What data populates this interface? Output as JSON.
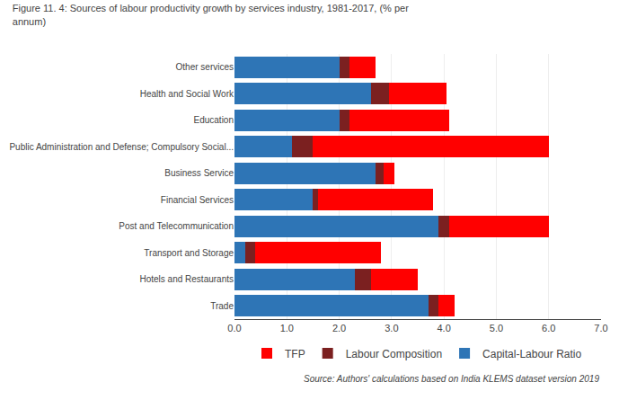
{
  "chart_data": {
    "type": "bar",
    "orientation": "horizontal",
    "stacked": true,
    "title": "Figure 11. 4: Sources of labour productivity growth by services industry, 1981-2017, (% per\nannum)",
    "annotations": [
      "Source: Authors' calculations based on India KLEMS dataset version 2019"
    ],
    "categories": [
      "Trade",
      "Hotels and Restaurants",
      "Transport and Storage",
      "Post and Telecommunication",
      "Financial Services",
      "Business Service",
      "Public Administration and Defense; Compulsory Social...",
      "Education",
      "Health and Social Work",
      "Other services"
    ],
    "series": [
      {
        "name": "Capital-Labour Ratio",
        "color": "#2E75B6",
        "values": [
          3.7,
          2.3,
          0.2,
          3.9,
          1.5,
          2.7,
          1.1,
          2.0,
          2.6,
          2.0
        ]
      },
      {
        "name": "Labour Composition",
        "color": "#7B2020",
        "values": [
          0.2,
          0.3,
          0.2,
          0.2,
          0.1,
          0.15,
          0.4,
          0.2,
          0.35,
          0.2
        ]
      },
      {
        "name": "TFP",
        "color": "#FF0000",
        "values": [
          0.3,
          0.9,
          2.4,
          1.9,
          2.2,
          0.2,
          4.5,
          1.9,
          1.1,
          0.5
        ]
      }
    ],
    "xlim": [
      0,
      7.0
    ],
    "xticks": [
      {
        "value": 0,
        "label": "0.0"
      },
      {
        "value": 1,
        "label": "1.0"
      },
      {
        "value": 2,
        "label": "2.0"
      },
      {
        "value": 3,
        "label": "3.0"
      },
      {
        "value": 4,
        "label": "4.0"
      },
      {
        "value": 5,
        "label": "5.0"
      },
      {
        "value": 6,
        "label": "6.0"
      },
      {
        "value": 7,
        "label": "7.0"
      }
    ],
    "grid": true,
    "legend": "bottom"
  }
}
